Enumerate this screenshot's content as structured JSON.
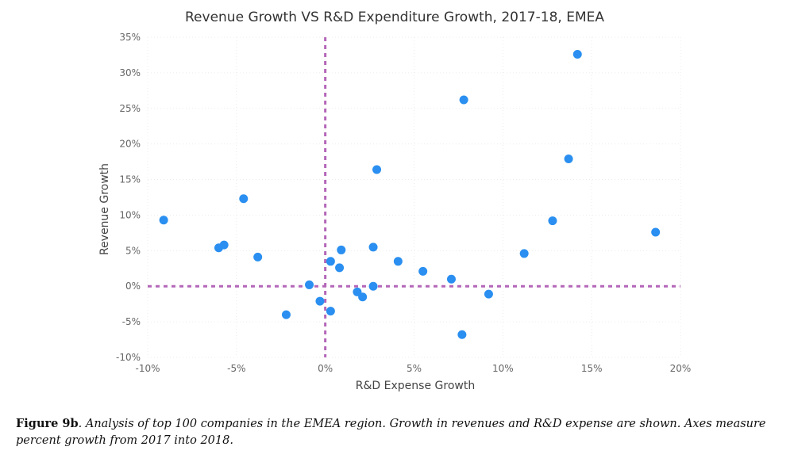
{
  "chart_data": {
    "type": "scatter",
    "title": "Revenue Growth VS R&D Expenditure Growth, 2017-18, EMEA",
    "xlabel": "R&D Expense Growth",
    "ylabel": "Revenue Growth",
    "xlim": [
      -10,
      20
    ],
    "ylim": [
      -10,
      35
    ],
    "x_ticks": [
      -10,
      -5,
      0,
      5,
      10,
      15,
      20
    ],
    "y_ticks": [
      -10,
      -5,
      0,
      5,
      10,
      15,
      20,
      25,
      30,
      35
    ],
    "x_tick_labels": [
      "-10%",
      "-5%",
      "0%",
      "5%",
      "10%",
      "15%",
      "20%"
    ],
    "y_tick_labels": [
      "-10%",
      "-5%",
      "0%",
      "5%",
      "10%",
      "15%",
      "20%",
      "25%",
      "30%",
      "35%"
    ],
    "reference_lines": {
      "x": 0,
      "y": 0,
      "color": "#b466b8",
      "style": "dashed"
    },
    "grid": true,
    "point_color": "#2a8ff0",
    "points": [
      {
        "x": -9.1,
        "y": 9.3
      },
      {
        "x": -6.0,
        "y": 5.4
      },
      {
        "x": -5.7,
        "y": 5.8
      },
      {
        "x": -4.6,
        "y": 12.3
      },
      {
        "x": -3.8,
        "y": 4.1
      },
      {
        "x": -2.2,
        "y": -4.0
      },
      {
        "x": -0.9,
        "y": 0.2
      },
      {
        "x": -0.3,
        "y": -2.1
      },
      {
        "x": 0.3,
        "y": 3.5
      },
      {
        "x": 0.3,
        "y": -3.5
      },
      {
        "x": 0.8,
        "y": 2.6
      },
      {
        "x": 0.9,
        "y": 5.1
      },
      {
        "x": 1.8,
        "y": -0.8
      },
      {
        "x": 2.1,
        "y": -1.5
      },
      {
        "x": 2.7,
        "y": 5.5
      },
      {
        "x": 2.7,
        "y": 0.0
      },
      {
        "x": 2.9,
        "y": 16.4
      },
      {
        "x": 4.1,
        "y": 3.5
      },
      {
        "x": 5.5,
        "y": 2.1
      },
      {
        "x": 7.1,
        "y": 1.0
      },
      {
        "x": 7.7,
        "y": -6.8
      },
      {
        "x": 7.8,
        "y": 26.2
      },
      {
        "x": 9.2,
        "y": -1.1
      },
      {
        "x": 11.2,
        "y": 4.6
      },
      {
        "x": 12.8,
        "y": 9.2
      },
      {
        "x": 13.7,
        "y": 17.9
      },
      {
        "x": 14.2,
        "y": 32.6
      },
      {
        "x": 18.6,
        "y": 7.6
      }
    ]
  },
  "caption": {
    "label": "Figure 9b",
    "text": ". Analysis of top 100 companies in the EMEA region. Growth in revenues and R&D expense are shown. Axes measure percent growth from 2017 into 2018."
  }
}
